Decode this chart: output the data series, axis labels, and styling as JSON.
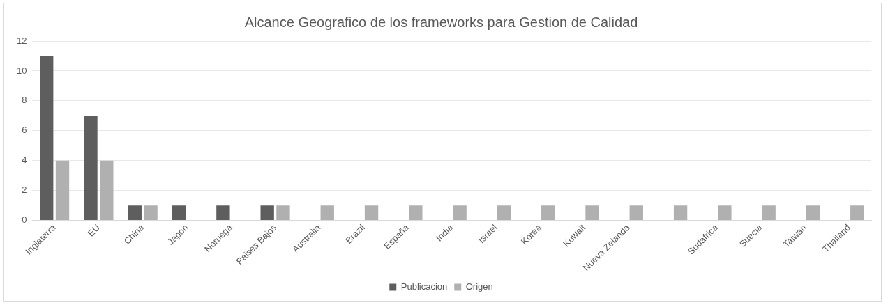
{
  "chart_data": {
    "type": "bar",
    "title": "Alcance Geografico de los frameworks para Gestion de Calidad",
    "categories": [
      "Inglaterra",
      "EU",
      "China",
      "Japon",
      "Noruega",
      "Paises Bajos",
      "Australia",
      "Brazil",
      "España",
      "India",
      "Israel",
      "Korea",
      "Kuwait",
      "Nueva Zelanda",
      null,
      "Sudafrica",
      "Suecia",
      "Taiwan",
      "Thailand"
    ],
    "series": [
      {
        "name": "Publicacion",
        "color": "#5e5e5e",
        "values": [
          11,
          7,
          1,
          1,
          1,
          1,
          0,
          0,
          0,
          0,
          0,
          0,
          0,
          0,
          0,
          0,
          0,
          0,
          0
        ]
      },
      {
        "name": "Origen",
        "color": "#b0b0b0",
        "values": [
          4,
          4,
          1,
          0,
          0,
          1,
          1,
          1,
          1,
          1,
          1,
          1,
          1,
          1,
          1,
          1,
          1,
          1,
          1
        ]
      }
    ],
    "ylim": [
      0,
      12
    ],
    "yticks": [
      0,
      2,
      4,
      6,
      8,
      10,
      12
    ],
    "grid": "y",
    "legend": "bottom"
  }
}
